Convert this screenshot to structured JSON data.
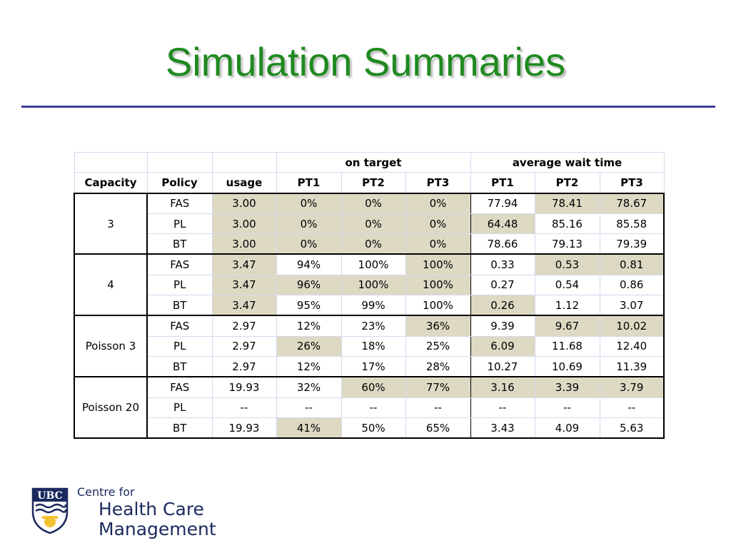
{
  "slide": {
    "title": "Simulation Summaries"
  },
  "table": {
    "group_headers": {
      "on_target": "on target",
      "avg_wait": "average wait time"
    },
    "col_headers": [
      "Capacity",
      "Policy",
      "usage",
      "PT1",
      "PT2",
      "PT3",
      "PT1",
      "PT2",
      "PT3"
    ],
    "groups": [
      {
        "capacity": "3",
        "rows": [
          [
            "FAS",
            "3.00",
            "0%",
            "0%",
            "0%",
            "77.94",
            "78.41",
            "78.67"
          ],
          [
            "PL",
            "3.00",
            "0%",
            "0%",
            "0%",
            "64.48",
            "85.16",
            "85.58"
          ],
          [
            "BT",
            "3.00",
            "0%",
            "0%",
            "0%",
            "78.66",
            "79.13",
            "79.39"
          ]
        ]
      },
      {
        "capacity": "4",
        "rows": [
          [
            "FAS",
            "3.47",
            "94%",
            "100%",
            "100%",
            "0.33",
            "0.53",
            "0.81"
          ],
          [
            "PL",
            "3.47",
            "96%",
            "100%",
            "100%",
            "0.27",
            "0.54",
            "0.86"
          ],
          [
            "BT",
            "3.47",
            "95%",
            "99%",
            "100%",
            "0.26",
            "1.12",
            "3.07"
          ]
        ]
      },
      {
        "capacity": "Poisson 3",
        "rows": [
          [
            "FAS",
            "2.97",
            "12%",
            "23%",
            "36%",
            "9.39",
            "9.67",
            "10.02"
          ],
          [
            "PL",
            "2.97",
            "26%",
            "18%",
            "25%",
            "6.09",
            "11.68",
            "12.40"
          ],
          [
            "BT",
            "2.97",
            "12%",
            "17%",
            "28%",
            "10.27",
            "10.69",
            "11.39"
          ]
        ]
      },
      {
        "capacity": "Poisson 20",
        "rows": [
          [
            "FAS",
            "19.93",
            "32%",
            "60%",
            "77%",
            "3.16",
            "3.39",
            "3.79"
          ],
          [
            "PL",
            "--",
            "--",
            "--",
            "--",
            "--",
            "--",
            "--"
          ],
          [
            "BT",
            "19.93",
            "41%",
            "50%",
            "65%",
            "3.43",
            "4.09",
            "5.63"
          ]
        ]
      }
    ],
    "highlight_color": "#ddd9c3"
  },
  "logo": {
    "icon": "ubc-crest-icon",
    "crest_text": "UBC",
    "line1": "Centre for",
    "line2": "Health Care",
    "line3": "Management"
  }
}
